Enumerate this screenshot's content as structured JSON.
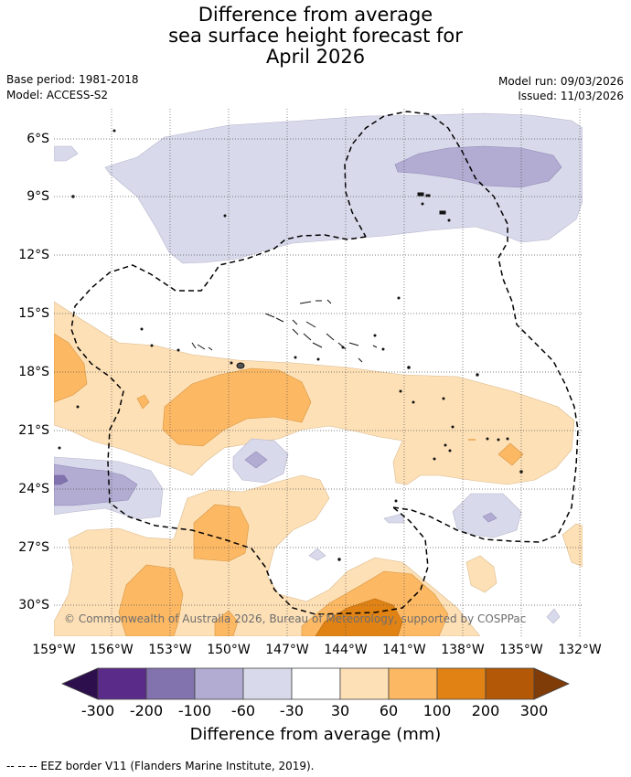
{
  "title": {
    "line1": "Difference from average",
    "line2": "sea surface height forecast for",
    "line3": "April 2026"
  },
  "meta": {
    "base_period": "Base period: 1981-2018",
    "model": "Model: ACCESS-S2",
    "model_run": "Model run: 09/03/2026",
    "issued": "Issued: 11/03/2026"
  },
  "map": {
    "lon_ticks": [
      "159°W",
      "156°W",
      "153°W",
      "150°W",
      "147°W",
      "144°W",
      "141°W",
      "138°W",
      "135°W",
      "132°W"
    ],
    "lat_ticks": [
      "6°S",
      "9°S",
      "12°S",
      "15°S",
      "18°S",
      "21°S",
      "24°S",
      "27°S",
      "30°S"
    ],
    "copyright": "© Commonwealth of Australia 2026, Bureau of Meteorology, supported by COSPPac"
  },
  "colorbar": {
    "title": "Difference from average (mm)",
    "labels": [
      "-300",
      "-200",
      "-100",
      "-60",
      "-30",
      "30",
      "60",
      "100",
      "200",
      "300"
    ],
    "colors": {
      "lt_neg300": "#2d0f4d",
      "neg300_neg200": "#5b2b8a",
      "neg200_neg100": "#8273ae",
      "neg100_neg60": "#b2abd2",
      "neg60_neg30": "#d8daeb",
      "neg30_30": "#ffffff",
      "p30_60": "#fee0b6",
      "p60_100": "#fdb863",
      "p100_200": "#e08214",
      "p200_300": "#b35806",
      "gt_300": "#7f3b08"
    }
  },
  "footnote": "--  --  -- EEZ border V11 (Flanders Marine Institute, 2019)."
}
